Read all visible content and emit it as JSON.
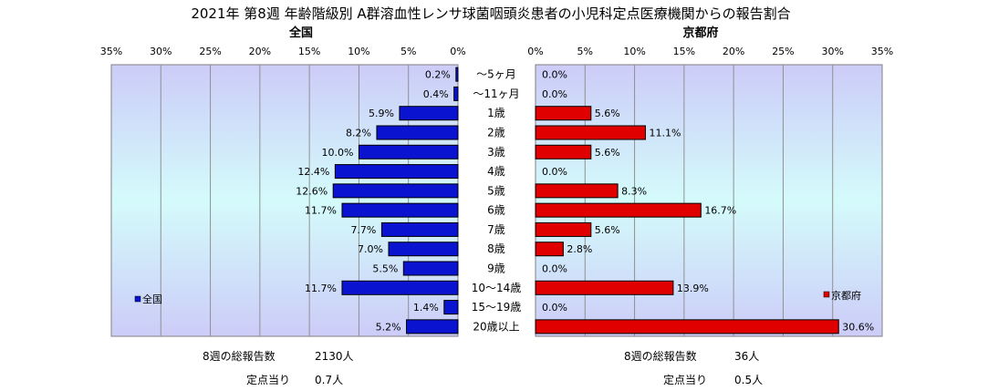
{
  "chart_data": {
    "type": "bar",
    "orientation": "horizontal-butterfly",
    "title": "2021年 第8週 年齢階級別 A群溶血性レンサ球菌咽頭炎患者の小児科定点医療機関からの報告割合",
    "categories": [
      "～5ヶ月",
      "～11ヶ月",
      "1歳",
      "2歳",
      "3歳",
      "4歳",
      "5歳",
      "6歳",
      "7歳",
      "8歳",
      "9歳",
      "10～14歳",
      "15～19歳",
      "20歳以上"
    ],
    "xlim": [
      0,
      35
    ],
    "ticks": [
      0,
      5,
      10,
      15,
      20,
      25,
      30,
      35
    ],
    "tick_suffix": "%",
    "grid": true,
    "series": [
      {
        "name": "全国",
        "panel_title": "全国",
        "color": "#0a14d0",
        "legend_position": "bottom-left",
        "values": [
          0.2,
          0.4,
          5.9,
          8.2,
          10.0,
          12.4,
          12.6,
          11.7,
          7.7,
          7.0,
          5.5,
          11.7,
          1.4,
          5.2
        ],
        "labels": [
          "0.2%",
          "0.4%",
          "5.9%",
          "8.2%",
          "10.0%",
          "12.4%",
          "12.6%",
          "11.7%",
          "7.7%",
          "7.0%",
          "5.5%",
          "11.7%",
          "1.4%",
          "5.2%"
        ]
      },
      {
        "name": "京都府",
        "panel_title": "京都府",
        "color": "#e00000",
        "legend_position": "bottom-right",
        "values": [
          0.0,
          0.0,
          5.6,
          11.1,
          5.6,
          0.0,
          8.3,
          16.7,
          5.6,
          2.8,
          0.0,
          13.9,
          0.0,
          30.6
        ],
        "labels": [
          "0.0%",
          "0.0%",
          "5.6%",
          "11.1%",
          "5.6%",
          "0.0%",
          "8.3%",
          "16.7%",
          "5.6%",
          "2.8%",
          "0.0%",
          "13.9%",
          "0.0%",
          "30.6%"
        ]
      }
    ]
  },
  "footer": {
    "national_total_label": "8週の総報告数",
    "national_total_value": "2130人",
    "national_per_label": "定点当り",
    "national_per_value": "0.7人",
    "kyoto_total_label": "8週の総報告数",
    "kyoto_total_value": "36人",
    "kyoto_per_label": "定点当り",
    "kyoto_per_value": "0.5人"
  }
}
